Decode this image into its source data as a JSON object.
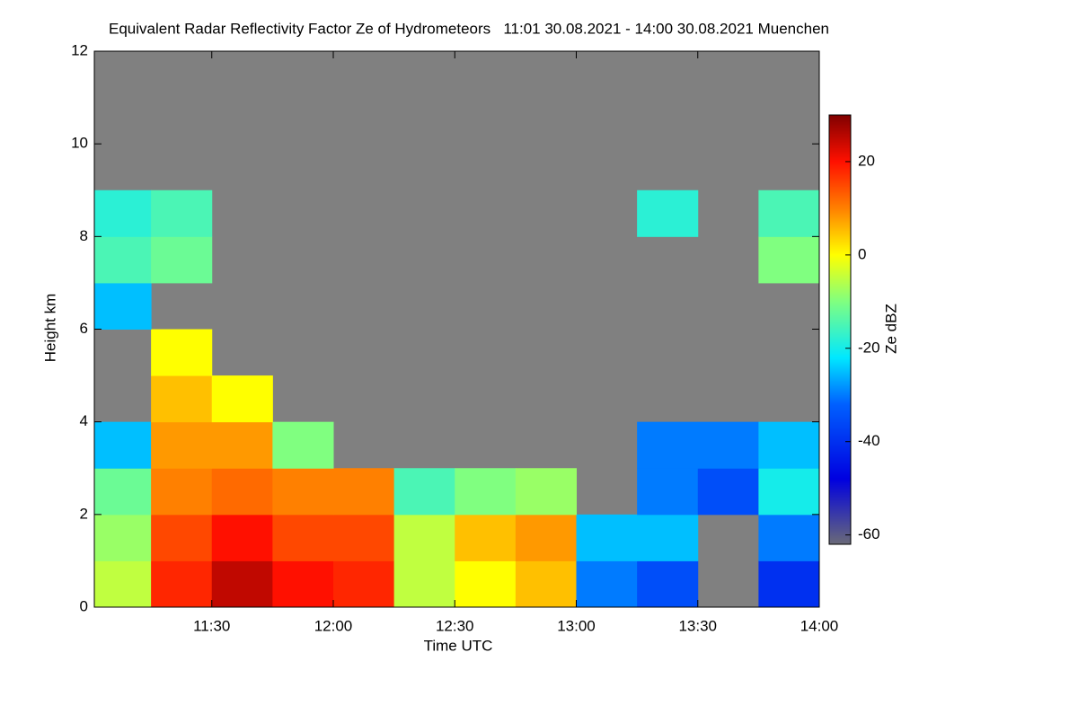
{
  "chart_data": {
    "type": "heatmap",
    "title": "Equivalent Radar Reflectivity Factor Ze of Hydrometeors   11:01 30.08.2021 - 14:00 30.08.2021 Muenchen",
    "x_label": "Time UTC",
    "y_label": "Height km",
    "colorbar_label": "Ze dBZ",
    "xlim": [
      661,
      840
    ],
    "xticks": [
      {
        "value": 690,
        "label": "11:30"
      },
      {
        "value": 720,
        "label": "12:00"
      },
      {
        "value": 750,
        "label": "12:30"
      },
      {
        "value": 780,
        "label": "13:00"
      },
      {
        "value": 810,
        "label": "13:30"
      },
      {
        "value": 840,
        "label": "14:00"
      }
    ],
    "ylim": [
      0,
      12
    ],
    "yticks": [
      0,
      2,
      4,
      6,
      8,
      10,
      12
    ],
    "x_bins": [
      661,
      675,
      690,
      705,
      720,
      735,
      750,
      765,
      780,
      795,
      810,
      825,
      840
    ],
    "y_bins": [
      0,
      1,
      2,
      3,
      4,
      5,
      6,
      7,
      8,
      9,
      10,
      11,
      12
    ],
    "z": [
      [
        -5,
        18,
        25,
        20,
        18,
        -5,
        0,
        5,
        -30,
        -35,
        null,
        -40
      ],
      [
        -8,
        15,
        20,
        15,
        15,
        -5,
        5,
        8,
        -25,
        -25,
        null,
        -30
      ],
      [
        -12,
        10,
        12,
        10,
        10,
        -15,
        -10,
        -8,
        null,
        -30,
        -35,
        -20
      ],
      [
        -25,
        8,
        8,
        -10,
        null,
        null,
        null,
        null,
        null,
        -30,
        -30,
        -25
      ],
      [
        null,
        5,
        0,
        null,
        null,
        null,
        null,
        null,
        null,
        null,
        null,
        null
      ],
      [
        null,
        0,
        null,
        null,
        null,
        null,
        null,
        null,
        null,
        null,
        null,
        null
      ],
      [
        -25,
        null,
        null,
        null,
        null,
        null,
        null,
        null,
        null,
        null,
        null,
        null
      ],
      [
        -15,
        -12,
        null,
        null,
        null,
        null,
        null,
        null,
        null,
        null,
        null,
        -10
      ],
      [
        -18,
        -15,
        null,
        null,
        null,
        null,
        null,
        null,
        null,
        -18,
        null,
        -15
      ],
      [
        null,
        null,
        null,
        null,
        null,
        null,
        null,
        null,
        null,
        null,
        null,
        null
      ],
      [
        null,
        null,
        null,
        null,
        null,
        null,
        null,
        null,
        null,
        null,
        null,
        null
      ],
      [
        null,
        null,
        null,
        null,
        null,
        null,
        null,
        null,
        null,
        null,
        null,
        null
      ]
    ],
    "zlim": [
      -62,
      30
    ],
    "zticks": [
      -60,
      -40,
      -20,
      0,
      20
    ],
    "background": "#808080",
    "colormap": [
      {
        "value": -62,
        "color": "#6a6a78"
      },
      {
        "value": -48,
        "color": "#0000e0"
      },
      {
        "value": -32,
        "color": "#0060ff"
      },
      {
        "value": -22,
        "color": "#00e8ff"
      },
      {
        "value": -10,
        "color": "#80ff80"
      },
      {
        "value": 0,
        "color": "#ffff00"
      },
      {
        "value": 10,
        "color": "#ff8000"
      },
      {
        "value": 20,
        "color": "#ff1000"
      },
      {
        "value": 30,
        "color": "#800000"
      }
    ]
  }
}
